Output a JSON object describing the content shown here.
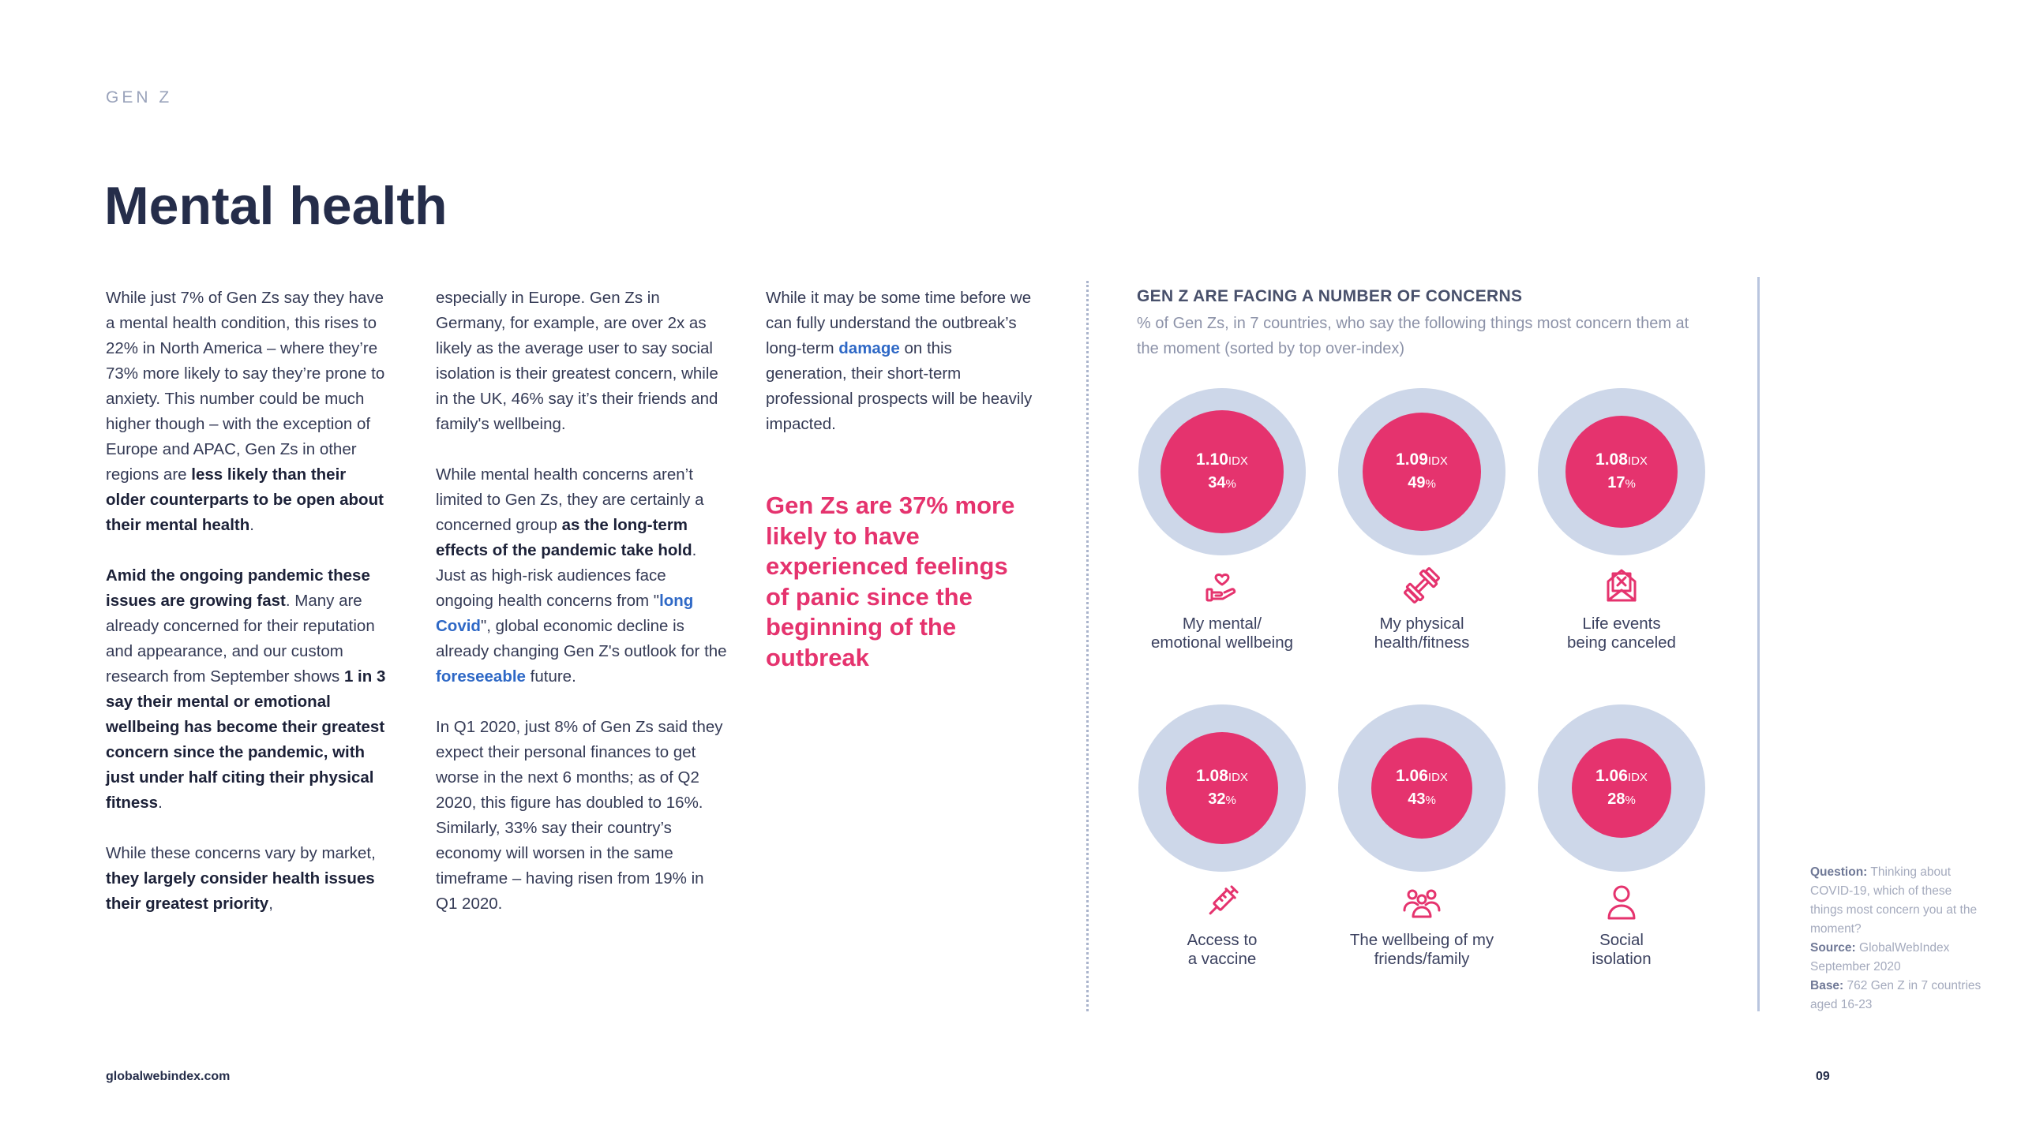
{
  "section_label": "GEN Z",
  "title": "Mental health",
  "columns": [
    [
      [
        {
          "t": "While just 7% of Gen Zs say they have a mental health condition, this rises to 22% in North America – where they’re 73% more likely to say they’re prone to anxiety. This number could be much higher though – with the exception of Europe and APAC, Gen Zs in other regions are "
        },
        {
          "t": "less likely than their older counterparts to be open about their mental health",
          "s": "b"
        },
        {
          "t": "."
        }
      ],
      [
        {
          "t": "Amid the ongoing pandemic these issues are growing fast",
          "s": "b"
        },
        {
          "t": ". Many are already concerned for their reputation and appearance, and our custom research from September shows "
        },
        {
          "t": "1 in 3 say their mental or emotional wellbeing has become their greatest concern since the pandemic, with just under half citing their physical fitness",
          "s": "b"
        },
        {
          "t": "."
        }
      ],
      [
        {
          "t": "While these concerns vary by market, "
        },
        {
          "t": "they largely consider health issues their greatest priority",
          "s": "b"
        },
        {
          "t": ","
        }
      ]
    ],
    [
      [
        {
          "t": "especially in Europe. Gen Zs in Germany, for example, are over 2x as likely as the average user to say social isolation is their greatest concern, while in the UK, 46% say it’s their friends and family's wellbeing."
        }
      ],
      [
        {
          "t": "While mental health concerns aren’t limited to Gen Zs, they are certainly a concerned group "
        },
        {
          "t": "as the long-term effects of the pandemic take hold",
          "s": "b"
        },
        {
          "t": ". Just as high-risk audiences face ongoing health concerns from \""
        },
        {
          "t": "long Covid",
          "s": "lk"
        },
        {
          "t": "\", global economic decline is already changing Gen Z's outlook for the "
        },
        {
          "t": "foreseeable",
          "s": "lk"
        },
        {
          "t": " future."
        }
      ],
      [
        {
          "t": "In Q1 2020, just 8% of Gen Zs said they expect their personal finances to get worse in the next 6 months; as of Q2 2020, this figure has doubled to 16%. Similarly, 33% say their country’s economy will worsen in the same timeframe – having risen from 19% in Q1 2020."
        }
      ]
    ],
    [
      [
        {
          "t": "While it may be some time before we can fully understand the outbreak’s long-term "
        },
        {
          "t": "damage",
          "s": "lk"
        },
        {
          "t": " on this generation, their short-term professional prospects will be heavily impacted."
        }
      ]
    ]
  ],
  "pull_quote": "Gen Zs are 37% more likely to have experienced feelings of panic since the beginning of the outbreak",
  "chart": {
    "title": "GEN Z ARE FACING A NUMBER OF CONCERNS",
    "subtitle": "% of Gen Zs, in 7 countries, who say the following things most concern them at the moment (sorted by top over-index)",
    "idx_unit": "IDX",
    "pct_unit": "%",
    "items": [
      {
        "index": "1.10",
        "percent": "34",
        "label1": "My mental/",
        "label2": "emotional wellbeing",
        "icon": "heart-hand-icon"
      },
      {
        "index": "1.09",
        "percent": "49",
        "label1": "My physical",
        "label2": "health/fitness",
        "icon": "dumbbell-icon"
      },
      {
        "index": "1.08",
        "percent": "17",
        "label1": "Life events",
        "label2": "being canceled",
        "icon": "cancelled-envelope-icon"
      },
      {
        "index": "1.08",
        "percent": "32",
        "label1": "Access to",
        "label2": "a vaccine",
        "icon": "syringe-icon"
      },
      {
        "index": "1.06",
        "percent": "43",
        "label1": "The wellbeing of my",
        "label2": "friends/family",
        "icon": "group-icon"
      },
      {
        "index": "1.06",
        "percent": "28",
        "label1": "Social",
        "label2": "isolation",
        "icon": "person-icon"
      }
    ],
    "colors": {
      "inner": "#e5336e",
      "outer": "#cdd7e9"
    }
  },
  "notes": {
    "question_label": "Question:",
    "question": " Thinking about COVID-19, which of these things most concern you at the moment?",
    "source_label": "Source:",
    "source": " GlobalWebIndex September 2020",
    "base_label": "Base:",
    "base": " 762 Gen Z in 7 countries aged 16-23"
  },
  "footer": {
    "url": "globalwebindex.com",
    "page": "09"
  }
}
